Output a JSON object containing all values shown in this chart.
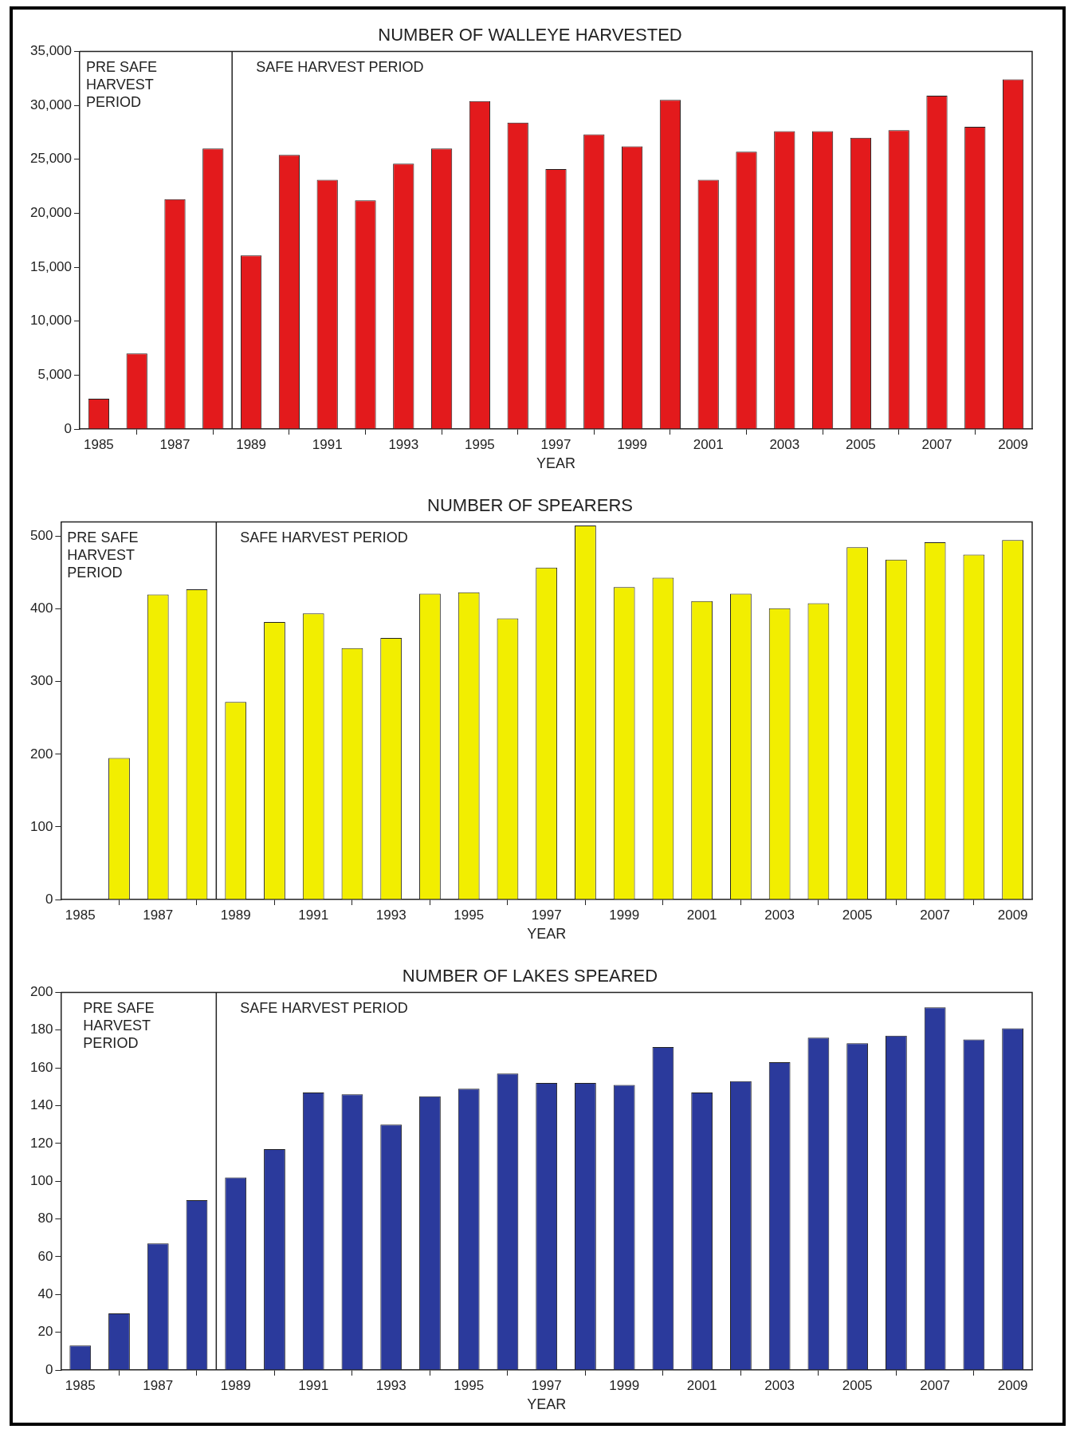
{
  "chart_data": [
    {
      "type": "bar",
      "title": "NUMBER OF WALLEYE HARVESTED",
      "xlabel": "YEAR",
      "x": [
        1985,
        1986,
        1987,
        1988,
        1989,
        1990,
        1991,
        1992,
        1993,
        1994,
        1995,
        1996,
        1997,
        1998,
        1999,
        2000,
        2001,
        2002,
        2003,
        2004,
        2005,
        2006,
        2007,
        2008,
        2009
      ],
      "values": [
        2800,
        7000,
        21300,
        26000,
        16100,
        25400,
        23100,
        21200,
        24600,
        26000,
        30400,
        28400,
        24100,
        27300,
        26200,
        30500,
        23100,
        25700,
        27600,
        27600,
        27000,
        27700,
        30900,
        28000,
        32400
      ],
      "color": "#e31a1c",
      "xlim": [
        1984.5,
        2009.5
      ],
      "xticks": [
        1985,
        1987,
        1989,
        1991,
        1993,
        1995,
        1997,
        1999,
        2001,
        2003,
        2005,
        2007,
        2009
      ],
      "ylim": [
        0,
        35000
      ],
      "yticks": [
        0,
        {
          "value": 5000,
          "label": "5,000"
        },
        {
          "value": 10000,
          "label": "10,000"
        },
        {
          "value": 15000,
          "label": "15,000"
        },
        {
          "value": 20000,
          "label": "20,000"
        },
        {
          "value": 25000,
          "label": "25,000"
        },
        {
          "value": 30000,
          "label": "30,000"
        },
        {
          "value": 35000,
          "label": "35,000"
        }
      ],
      "ref_lines": [
        {
          "axis": "x",
          "value": 1988.5
        }
      ],
      "annotations": [
        "PRE SAFE HARVEST PERIOD",
        "SAFE HARVEST PERIOD"
      ],
      "grid": false,
      "legend": false
    },
    {
      "type": "bar",
      "title": "NUMBER OF SPEARERS",
      "xlabel": "YEAR",
      "x": [
        1986,
        1987,
        1988,
        1989,
        1990,
        1991,
        1992,
        1993,
        1994,
        1995,
        1996,
        1997,
        1998,
        1999,
        2000,
        2001,
        2002,
        2003,
        2004,
        2005,
        2006,
        2007,
        2008,
        2009
      ],
      "values": [
        195,
        420,
        427,
        272,
        382,
        394,
        346,
        360,
        421,
        423,
        387,
        457,
        515,
        430,
        443,
        411,
        421,
        401,
        408,
        485,
        468,
        492,
        475,
        495
      ],
      "color": "#f2ee00",
      "xlim": [
        1984.5,
        2009.5
      ],
      "xticks": [
        1985,
        1987,
        1989,
        1991,
        1993,
        1995,
        1997,
        1999,
        2001,
        2003,
        2005,
        2007,
        2009
      ],
      "ylim": [
        0,
        520
      ],
      "yticks": [
        0,
        100,
        200,
        300,
        400,
        500
      ],
      "ref_lines": [
        {
          "axis": "x",
          "value": 1988.5
        }
      ],
      "annotations": [
        "PRE SAFE HARVEST PERIOD",
        "SAFE HARVEST PERIOD"
      ],
      "grid": false,
      "legend": false
    },
    {
      "type": "bar",
      "title": "NUMBER OF LAKES SPEARED",
      "xlabel": "YEAR",
      "x": [
        1985,
        1986,
        1987,
        1988,
        1989,
        1990,
        1991,
        1992,
        1993,
        1994,
        1995,
        1996,
        1997,
        1998,
        1999,
        2000,
        2001,
        2002,
        2003,
        2004,
        2005,
        2006,
        2007,
        2008,
        2009
      ],
      "values": [
        13,
        30,
        67,
        90,
        102,
        117,
        147,
        146,
        130,
        145,
        149,
        157,
        152,
        152,
        151,
        171,
        147,
        153,
        163,
        176,
        173,
        177,
        192,
        175,
        181
      ],
      "color": "#2b3a9c",
      "xlim": [
        1984.5,
        2009.5
      ],
      "xticks": [
        1985,
        1987,
        1989,
        1991,
        1993,
        1995,
        1997,
        1999,
        2001,
        2003,
        2005,
        2007,
        2009
      ],
      "ylim": [
        0,
        200
      ],
      "yticks": [
        0,
        20,
        40,
        60,
        80,
        100,
        120,
        140,
        160,
        180,
        200
      ],
      "ref_lines": [
        {
          "axis": "x",
          "value": 1988.5
        }
      ],
      "annotations": [
        "PRE SAFE HARVEST PERIOD",
        "SAFE HARVEST PERIOD"
      ],
      "grid": false,
      "legend": false
    }
  ]
}
